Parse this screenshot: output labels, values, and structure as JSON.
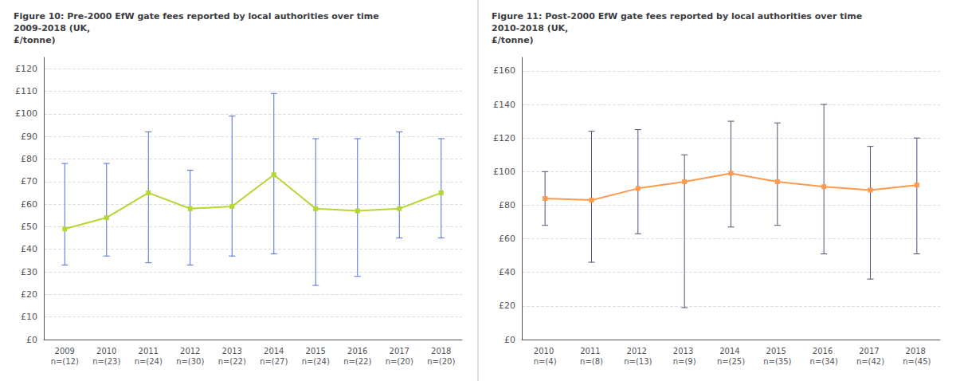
{
  "chart_data": [
    {
      "type": "line",
      "title": "Figure 10: Pre-2000 EfW gate fees reported by local authorities over time 2009-2018 (UK,\n£/tonne)",
      "categories": [
        "2009\nn=(12)",
        "2010\nn=(23)",
        "2011\nn=(24)",
        "2012\nn=(30)",
        "2013\nn=(22)",
        "2014\nn=(27)",
        "2015\nn=(24)",
        "2016\nn=(22)",
        "2017\nn=(20)",
        "2018\nn=(20)"
      ],
      "values": [
        49,
        54,
        65,
        58,
        59,
        73,
        58,
        57,
        58,
        65
      ],
      "upper": [
        78,
        78,
        92,
        75,
        99,
        109,
        89,
        89,
        92,
        89
      ],
      "lower": [
        33,
        37,
        34,
        33,
        37,
        38,
        24,
        28,
        45,
        45
      ],
      "ylim": [
        0,
        125
      ],
      "yticks": [
        {
          "value": 0,
          "label": "£0"
        },
        {
          "value": 10,
          "label": "£10"
        },
        {
          "value": 20,
          "label": "£20"
        },
        {
          "value": 30,
          "label": "£30"
        },
        {
          "value": 40,
          "label": "£40"
        },
        {
          "value": 50,
          "label": "£50"
        },
        {
          "value": 60,
          "label": "£60"
        },
        {
          "value": 70,
          "label": "£70"
        },
        {
          "value": 80,
          "label": "£80"
        },
        {
          "value": 90,
          "label": "£90"
        },
        {
          "value": 100,
          "label": "£100"
        },
        {
          "value": 110,
          "label": "£110"
        },
        {
          "value": 120,
          "label": "£120"
        }
      ],
      "grid": true,
      "marker": "square"
    },
    {
      "type": "line",
      "title": "Figure 11: Post-2000 EfW gate fees reported by local authorities over time 2010-2018 (UK,\n£/tonne)",
      "categories": [
        "2010 n=(4)",
        "2011 n=(8)",
        "2012 n=(13)",
        "2013 n=(9)",
        "2014 n=(25)",
        "2015 n=(35)",
        "2016 n=(34)",
        "2017 n=(42)",
        "2018 n=(45)"
      ],
      "values": [
        84,
        83,
        90,
        94,
        99,
        94,
        91,
        89,
        92
      ],
      "upper": [
        100,
        124,
        125,
        110,
        130,
        129,
        140,
        115,
        120
      ],
      "lower": [
        68,
        46,
        63,
        19,
        67,
        68,
        51,
        36,
        51
      ],
      "ylim": [
        0,
        168
      ],
      "yticks": [
        {
          "value": 0,
          "label": "£0"
        },
        {
          "value": 20,
          "label": "£20"
        },
        {
          "value": 40,
          "label": "£40"
        },
        {
          "value": 60,
          "label": "£60"
        },
        {
          "value": 80,
          "label": "£80"
        },
        {
          "value": 100,
          "label": "£100"
        },
        {
          "value": 120,
          "label": "£120"
        },
        {
          "value": 140,
          "label": "£140"
        },
        {
          "value": 160,
          "label": "£160"
        }
      ],
      "grid": true,
      "marker": "square"
    }
  ]
}
